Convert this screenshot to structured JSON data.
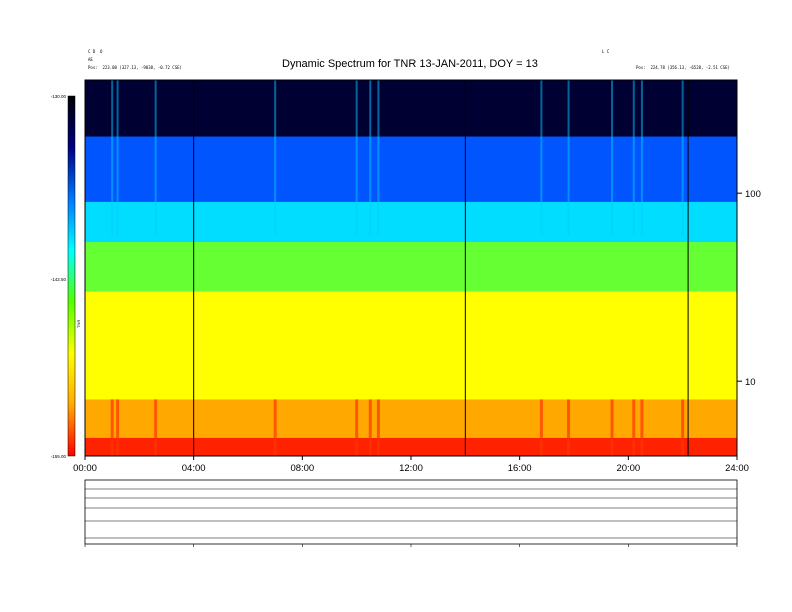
{
  "header": {
    "left_line1": "C D  O                    ",
    "left_line2": "AE        ",
    "left_line3": "Pos:  223.00 (327.13, -9038, -0.72 CSE)",
    "right_line1": "L C",
    "right_line2": "            ",
    "right_line3": "Pos:  224.78 (356.13, -6528, -2.51 CSE)",
    "center_small": "        ",
    "mid_small": "     "
  },
  "chart_data": {
    "type": "heatmap",
    "title": "Dynamic Spectrum for TNR 13-JAN-2011, DOY = 13",
    "xlabel": "",
    "ylabel": "",
    "x_ticks": [
      "00:00",
      "04:00",
      "08:00",
      "12:00",
      "16:00",
      "20:00",
      "24:00"
    ],
    "x_range_hours": [
      0,
      24
    ],
    "y_scale": "log",
    "y_ticks": [
      "100",
      "10"
    ],
    "y_tick_values": [
      100,
      10
    ],
    "y_range": [
      4,
      400
    ],
    "colorbar_label": "TNR",
    "colorbar_ticks": [
      "-130.00",
      "-142.50",
      "-155.00"
    ],
    "colorbar_range": [
      -155.0,
      -130.0
    ],
    "colorbar_colors": [
      "#ff0000",
      "#ffaa00",
      "#ffff00",
      "#55ff00",
      "#00ffff",
      "#0077ff",
      "#000080",
      "#000000"
    ],
    "vertical_markers_hours": [
      4.0,
      14.0,
      22.2
    ],
    "bands": [
      {
        "name": "top-dark-band",
        "y_from": 400,
        "y_to": 200,
        "color": "#000033"
      },
      {
        "name": "blue-band",
        "y_from": 200,
        "y_to": 90,
        "color": "#0055ff"
      },
      {
        "name": "cyan-band",
        "y_from": 90,
        "y_to": 55,
        "color": "#00ddff"
      },
      {
        "name": "green-band",
        "y_from": 55,
        "y_to": 30,
        "color": "#66ff33"
      },
      {
        "name": "yellow-band",
        "y_from": 30,
        "y_to": 8,
        "color": "#ffff00"
      },
      {
        "name": "orange-band",
        "y_from": 8,
        "y_to": 5,
        "color": "#ffaa00"
      },
      {
        "name": "red-band",
        "y_from": 5,
        "y_to": 4,
        "color": "#ff2200"
      }
    ],
    "bursts_hours": [
      1.0,
      1.2,
      2.6,
      7.0,
      10.0,
      10.5,
      10.8,
      16.8,
      17.8,
      19.4,
      20.2,
      20.5,
      22.0
    ]
  },
  "lower_panel": {
    "left_labels": [
      " ",
      " ",
      " ",
      " ",
      " "
    ],
    "right_labels": [
      " ",
      " ",
      " ",
      " ",
      " "
    ],
    "x_ticks": [
      " ",
      " ",
      " ",
      " ",
      " ",
      " ",
      " "
    ],
    "footer": " "
  }
}
